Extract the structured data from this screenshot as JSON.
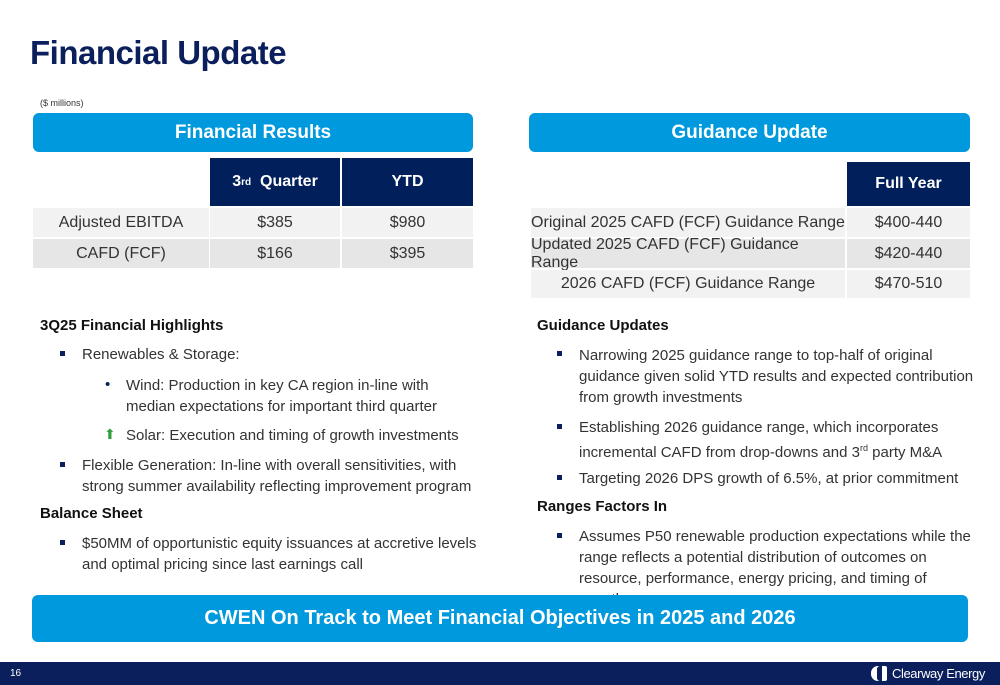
{
  "title": "Financial Update",
  "units": "($ millions)",
  "financial_results": {
    "title": "Financial Results",
    "headers": [
      "3",
      "rd",
      "Quarter",
      "YTD"
    ],
    "rows": [
      {
        "label": "Adjusted EBITDA",
        "q3": "$385",
        "ytd": "$980"
      },
      {
        "label": "CAFD (FCF)",
        "q3": "$166",
        "ytd": "$395"
      }
    ]
  },
  "guidance": {
    "title": "Guidance Update",
    "header": "Full Year",
    "rows": [
      {
        "label": "Original 2025 CAFD (FCF) Guidance Range",
        "value": "$400-440"
      },
      {
        "label": "Updated 2025 CAFD (FCF) Guidance Range",
        "value": "$420-440"
      },
      {
        "label": "2026 CAFD (FCF) Guidance Range",
        "value": "$470-510"
      }
    ]
  },
  "highlights": {
    "heading": "3Q25 Financial Highlights",
    "b1": "Renewables & Storage:",
    "b1a": "Wind: Production in key CA region in-line with median expectations for important third quarter",
    "b1b": "Solar: Execution and timing of growth investments",
    "b2": "Flexible Generation: In-line with overall sensitivities, with strong summer availability reflecting improvement program"
  },
  "balance": {
    "heading": "Balance Sheet",
    "b1": "$50MM of opportunistic equity issuances at accretive levels and optimal pricing since last earnings call"
  },
  "guidance_updates": {
    "heading": "Guidance Updates",
    "b1": "Narrowing 2025 guidance range to top-half of original guidance given solid YTD results and expected contribution from growth investments",
    "b2a": "Establishing 2026 guidance range, which incorporates incremental CAFD from drop-downs and 3",
    "b2sup": "rd",
    "b2b": " party M&A",
    "b3": "Targeting 2026 DPS growth of 6.5%, at prior commitment"
  },
  "ranges": {
    "heading": "Ranges Factors In",
    "b1": "Assumes P50 renewable production expectations while the range reflects a potential distribution of outcomes on resource, performance, energy pricing, and timing of growth"
  },
  "banner": "CWEN On Track to Meet Financial Objectives in 2025 and 2026",
  "footer": {
    "page": "16",
    "logo": "Clearway Energy"
  },
  "colors": {
    "navy": "#0b1f5c",
    "blue": "#0099dd",
    "up_arrow": "#2e9e3e"
  }
}
